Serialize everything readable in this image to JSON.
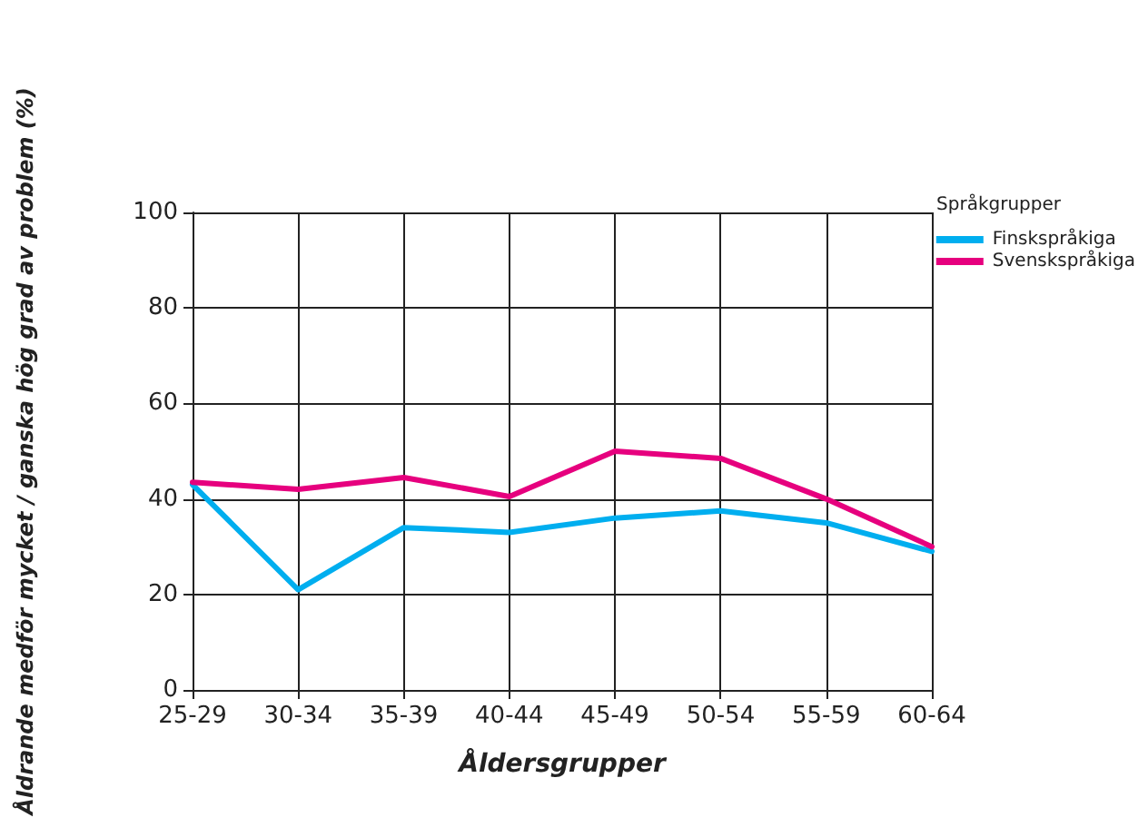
{
  "chart_data": {
    "type": "line",
    "xlabel": "Åldersgrupper",
    "ylabel": "Åldrande medför mycket / ganska hög grad av problem (%)",
    "legend_title": "Språkgrupper",
    "categories": [
      "25-29",
      "30-34",
      "35-39",
      "40-44",
      "45-49",
      "50-54",
      "55-59",
      "60-64"
    ],
    "series": [
      {
        "name": "Finskspråkiga",
        "color": "#00aeef",
        "values": [
          43,
          21,
          34,
          33,
          36,
          37.5,
          35,
          29
        ]
      },
      {
        "name": "Svenskspråkiga",
        "color": "#e6007e",
        "values": [
          43.5,
          42,
          44.5,
          40.5,
          50,
          48.5,
          40,
          30
        ]
      }
    ],
    "ylim": [
      0,
      100
    ],
    "yticks": [
      0,
      20,
      40,
      60,
      80,
      100
    ],
    "grid": true,
    "legend": "top right",
    "marker": "none",
    "line_style": "solid"
  }
}
